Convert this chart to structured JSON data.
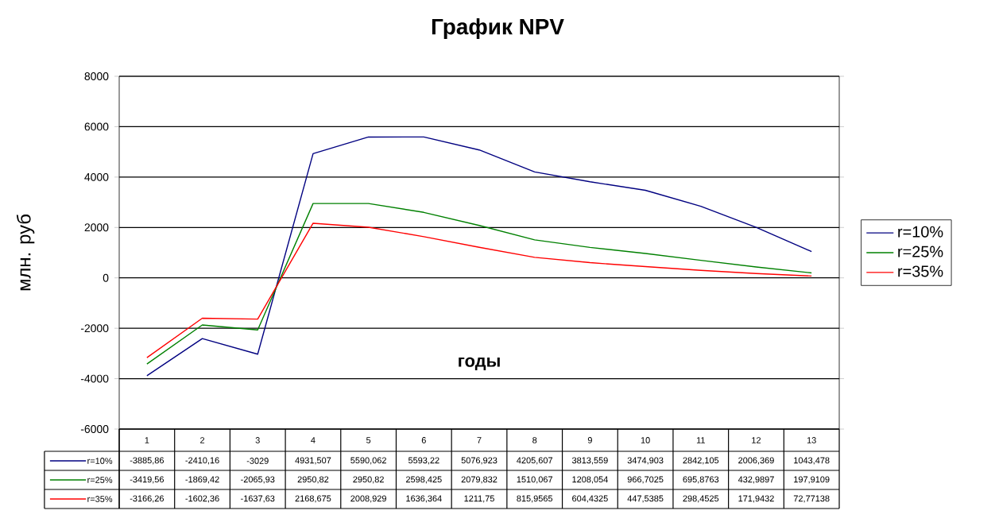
{
  "chart_data": {
    "type": "line",
    "title": "График NPV",
    "xlabel": "годы",
    "ylabel": "млн. руб",
    "categories": [
      "1",
      "2",
      "3",
      "4",
      "5",
      "6",
      "7",
      "8",
      "9",
      "10",
      "11",
      "12",
      "13"
    ],
    "series": [
      {
        "name": "r=10%",
        "color": "#000080",
        "values": [
          -3885.86,
          -2410.16,
          -3029,
          4931.507,
          5590.062,
          5593.22,
          5076.923,
          4205.607,
          3813.559,
          3474.903,
          2842.105,
          2006.369,
          1043.478
        ],
        "value_labels": [
          "-3885,86",
          "-2410,16",
          "-3029",
          "4931,507",
          "5590,062",
          "5593,22",
          "5076,923",
          "4205,607",
          "3813,559",
          "3474,903",
          "2842,105",
          "2006,369",
          "1043,478"
        ]
      },
      {
        "name": "r=25%",
        "color": "#008000",
        "values": [
          -3419.56,
          -1869.42,
          -2065.93,
          2950.82,
          2950.82,
          2598.425,
          2079.832,
          1510.067,
          1208.054,
          966.7025,
          695.8763,
          432.9897,
          197.9109
        ],
        "value_labels": [
          "-3419,56",
          "-1869,42",
          "-2065,93",
          "2950,82",
          "2950,82",
          "2598,425",
          "2079,832",
          "1510,067",
          "1208,054",
          "966,7025",
          "695,8763",
          "432,9897",
          "197,9109"
        ]
      },
      {
        "name": "r=35%",
        "color": "#ff0000",
        "values": [
          -3166.26,
          -1602.36,
          -1637.63,
          2168.675,
          2008.929,
          1636.364,
          1211.75,
          815.9565,
          604.4325,
          447.5385,
          298.4525,
          171.9432,
          72.77138
        ],
        "value_labels": [
          "-3166,26",
          "-1602,36",
          "-1637,63",
          "2168,675",
          "2008,929",
          "1636,364",
          "1211,75",
          "815,9565",
          "604,4325",
          "447,5385",
          "298,4525",
          "171,9432",
          "72,77138"
        ]
      }
    ],
    "ylim": [
      -6000,
      8000
    ],
    "yticks": [
      -6000,
      -4000,
      -2000,
      0,
      2000,
      4000,
      6000,
      8000
    ],
    "grid": true,
    "legend": "right"
  }
}
